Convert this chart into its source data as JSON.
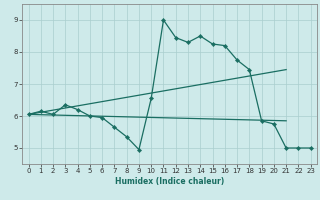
{
  "xlabel": "Humidex (Indice chaleur)",
  "xlim": [
    -0.5,
    23.5
  ],
  "ylim": [
    4.5,
    9.5
  ],
  "yticks": [
    5,
    6,
    7,
    8,
    9
  ],
  "xticks": [
    0,
    1,
    2,
    3,
    4,
    5,
    6,
    7,
    8,
    9,
    10,
    11,
    12,
    13,
    14,
    15,
    16,
    17,
    18,
    19,
    20,
    21,
    22,
    23
  ],
  "bg_color": "#ceeaea",
  "line_color": "#1a6e62",
  "grid_color": "#aacece",
  "line1_x": [
    0,
    1,
    2,
    3,
    4,
    5,
    6,
    7,
    8,
    9,
    10,
    11,
    12,
    13,
    14,
    15,
    16,
    17,
    18,
    19,
    20,
    21,
    22,
    23
  ],
  "line1_y": [
    6.05,
    6.15,
    6.05,
    6.35,
    6.2,
    6.0,
    5.95,
    5.65,
    5.35,
    4.95,
    6.55,
    9.0,
    8.45,
    8.3,
    8.5,
    8.25,
    8.2,
    7.75,
    7.45,
    5.85,
    5.75,
    5.0,
    5.0,
    5.0
  ],
  "line2_x": [
    0,
    21
  ],
  "line2_y": [
    6.05,
    5.85
  ],
  "line3_x": [
    0,
    21
  ],
  "line3_y": [
    6.05,
    7.45
  ]
}
